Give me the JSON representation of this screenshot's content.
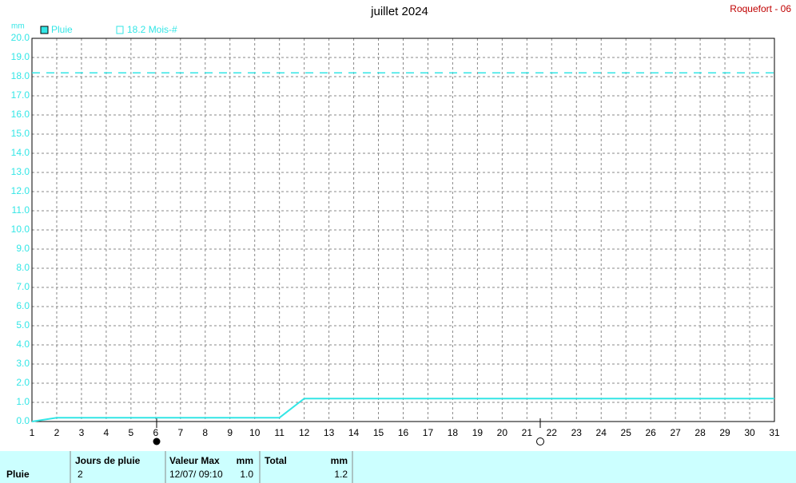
{
  "chart_data": {
    "type": "line",
    "title": "juillet 2024",
    "station": "Roquefort - 06",
    "ylabel": "mm",
    "x": [
      1,
      2,
      3,
      4,
      5,
      6,
      7,
      8,
      9,
      10,
      11,
      12,
      13,
      14,
      15,
      16,
      17,
      18,
      19,
      20,
      21,
      22,
      23,
      24,
      25,
      26,
      27,
      28,
      29,
      30,
      31
    ],
    "series": [
      {
        "name": "Pluie",
        "color": "#33e6e6",
        "values": [
          0,
          0.2,
          0.2,
          0.2,
          0.2,
          0.2,
          0.2,
          0.2,
          0.2,
          0.2,
          0.2,
          1.2,
          1.2,
          1.2,
          1.2,
          1.2,
          1.2,
          1.2,
          1.2,
          1.2,
          1.2,
          1.2,
          1.2,
          1.2,
          1.2,
          1.2,
          1.2,
          1.2,
          1.2,
          1.2,
          1.2
        ]
      }
    ],
    "reference": {
      "label": "18.2 Mois-#",
      "value": 18.2,
      "color": "#33e6e6"
    },
    "xlim": [
      1,
      31
    ],
    "xticks": [
      1,
      2,
      3,
      4,
      5,
      6,
      7,
      8,
      9,
      10,
      11,
      12,
      13,
      14,
      15,
      16,
      17,
      18,
      19,
      20,
      21,
      22,
      23,
      24,
      25,
      26,
      27,
      28,
      29,
      30,
      31
    ],
    "ylim": [
      0,
      20
    ],
    "yticks": [
      {
        "value": 0,
        "label": "0.0"
      },
      {
        "value": 1,
        "label": "1.0"
      },
      {
        "value": 2,
        "label": "2.0"
      },
      {
        "value": 3,
        "label": "3.0"
      },
      {
        "value": 4,
        "label": "4.0"
      },
      {
        "value": 5,
        "label": "5.0"
      },
      {
        "value": 6,
        "label": "6.0"
      },
      {
        "value": 7,
        "label": "7.0"
      },
      {
        "value": 8,
        "label": "8.0"
      },
      {
        "value": 9,
        "label": "9.0"
      },
      {
        "value": 10,
        "label": "10.0"
      },
      {
        "value": 11,
        "label": "11.0"
      },
      {
        "value": 12,
        "label": "12.0"
      },
      {
        "value": 13,
        "label": "13.0"
      },
      {
        "value": 14,
        "label": "14.0"
      },
      {
        "value": 15,
        "label": "15.0"
      },
      {
        "value": 16,
        "label": "16.0"
      },
      {
        "value": 17,
        "label": "17.0"
      },
      {
        "value": 18,
        "label": "18.0"
      },
      {
        "value": 19,
        "label": "19.0"
      },
      {
        "value": 20,
        "label": "20.0"
      }
    ],
    "grid": true
  },
  "table": {
    "row_label": "Pluie",
    "headers": [
      "Jours de pluie",
      "Valeur Max",
      "mm",
      "Total",
      "mm"
    ],
    "values": [
      "2",
      "12/07/ 09:10",
      "1.0",
      "1.2"
    ]
  }
}
